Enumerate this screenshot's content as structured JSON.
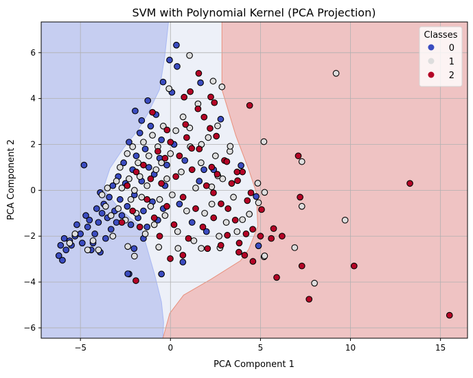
{
  "chart_data": {
    "type": "scatter",
    "title": "SVM with Polynomial Kernel (PCA Projection)",
    "xlabel": "PCA Component 1",
    "ylabel": "PCA Component 2",
    "xlim": [
      -7.18,
      16.5
    ],
    "ylim": [
      -6.45,
      7.34
    ],
    "xticks": [
      -5,
      0,
      5,
      10,
      15
    ],
    "yticks": [
      -6,
      -4,
      -2,
      0,
      2,
      4,
      6
    ],
    "xtick_labels": [
      "−5",
      "0",
      "5",
      "10",
      "15"
    ],
    "ytick_labels": [
      "−6",
      "−4",
      "−2",
      "0",
      "2",
      "4",
      "6"
    ],
    "grid": true,
    "legend": {
      "title": "Classes",
      "placement": "top-right",
      "entries": [
        {
          "label": "0",
          "color": "#3b4cc0"
        },
        {
          "label": "1",
          "color": "#dddddd"
        },
        {
          "label": "2",
          "color": "#b40426"
        }
      ]
    },
    "class_colors": [
      "#3b4cc0",
      "#dddddd",
      "#b40426"
    ],
    "region_colors": [
      "#c6cef1",
      "#edf0f8",
      "#efc3c3"
    ],
    "decision_boundaries": {
      "class0_class1": [
        [
          -0.11,
          7.34
        ],
        [
          -0.31,
          5.88
        ],
        [
          -0.61,
          4.39
        ],
        [
          -1.26,
          3.34
        ],
        [
          -1.83,
          2.6
        ],
        [
          -2.6,
          1.85
        ],
        [
          -3.36,
          0.96
        ],
        [
          -3.74,
          0.06
        ],
        [
          -2.79,
          -0.84
        ],
        [
          -1.64,
          -1.58
        ],
        [
          -1.26,
          -2.63
        ],
        [
          -0.88,
          -3.67
        ],
        [
          -0.5,
          -4.87
        ],
        [
          -0.38,
          -5.76
        ],
        [
          -0.42,
          -6.45
        ]
      ],
      "class1_class2": [
        [
          2.86,
          7.34
        ],
        [
          2.86,
          4.39
        ],
        [
          3.63,
          2.39
        ],
        [
          4.35,
          0.9
        ],
        [
          4.77,
          -0.09
        ],
        [
          4.85,
          -1.58
        ],
        [
          4.35,
          -2.57
        ],
        [
          3.89,
          -3.07
        ],
        [
          2.25,
          -3.88
        ],
        [
          0.73,
          -4.57
        ],
        [
          -0.04,
          -5.37
        ],
        [
          -0.42,
          -6.45
        ]
      ]
    },
    "points": [
      [
        -6.2,
        -2.85,
        0
      ],
      [
        -6.0,
        -3.05,
        0
      ],
      [
        -6.1,
        -2.4,
        0
      ],
      [
        -5.9,
        -2.1,
        0
      ],
      [
        -5.8,
        -2.6,
        0
      ],
      [
        -5.6,
        -2.2,
        0
      ],
      [
        -5.5,
        -2.4,
        0
      ],
      [
        -5.3,
        -2.0,
        0
      ],
      [
        -5.2,
        -1.5,
        0
      ],
      [
        -5.0,
        -1.9,
        0
      ],
      [
        -4.9,
        -2.3,
        0
      ],
      [
        -4.7,
        -1.1,
        0
      ],
      [
        -4.6,
        -1.6,
        0
      ],
      [
        -4.5,
        -1.3,
        0
      ],
      [
        -4.3,
        -2.3,
        0
      ],
      [
        -4.2,
        -1.9,
        0
      ],
      [
        -4.1,
        -0.8,
        0
      ],
      [
        -4.0,
        -1.4,
        0
      ],
      [
        -3.9,
        -0.1,
        0
      ],
      [
        -3.8,
        -1.0,
        0
      ],
      [
        -3.7,
        -0.6,
        0
      ],
      [
        -3.6,
        -2.1,
        0
      ],
      [
        -3.5,
        -1.2,
        0
      ],
      [
        -3.4,
        -0.3,
        0
      ],
      [
        -3.3,
        -1.7,
        0
      ],
      [
        -3.2,
        0.2,
        0
      ],
      [
        -3.1,
        -0.9,
        0
      ],
      [
        -3.0,
        -1.4,
        0
      ],
      [
        -2.9,
        0.6,
        0
      ],
      [
        -2.8,
        -0.4,
        0
      ],
      [
        -2.7,
        -1.1,
        0
      ],
      [
        -2.6,
        1.2,
        0
      ],
      [
        -2.5,
        0.3,
        0
      ],
      [
        -2.4,
        -0.7,
        0
      ],
      [
        -2.3,
        2.1,
        0
      ],
      [
        -2.2,
        -1.5,
        0
      ],
      [
        -2.1,
        0.9,
        0
      ],
      [
        -2.0,
        -0.2,
        0
      ],
      [
        -1.9,
        1.5,
        0
      ],
      [
        -1.8,
        -1.2,
        0
      ],
      [
        -1.7,
        2.5,
        0
      ],
      [
        -1.6,
        0.4,
        0
      ],
      [
        -1.5,
        -0.9,
        0
      ],
      [
        -1.4,
        1.8,
        0
      ],
      [
        -1.3,
        -1.6,
        0
      ],
      [
        -1.2,
        1.0,
        0
      ],
      [
        -1.1,
        2.8,
        0
      ],
      [
        -1.0,
        -0.5,
        0
      ],
      [
        -0.9,
        0.7,
        0
      ],
      [
        -0.8,
        3.3,
        0
      ],
      [
        -0.7,
        -1.3,
        0
      ],
      [
        -0.6,
        1.4,
        0
      ],
      [
        -0.5,
        2.2,
        0
      ],
      [
        -0.4,
        -0.8,
        0
      ],
      [
        -0.3,
        0.2,
        0
      ],
      [
        -0.2,
        1.1,
        0
      ],
      [
        0.2,
        2.0,
        0
      ],
      [
        0.5,
        -0.6,
        0
      ],
      [
        0.8,
        1.3,
        0
      ],
      [
        1.2,
        -1.4,
        0
      ],
      [
        1.6,
        0.4,
        0
      ],
      [
        2.0,
        -1.8,
        0
      ],
      [
        2.4,
        0.9,
        0
      ],
      [
        -4.8,
        1.1,
        0
      ],
      [
        -2.3,
        -3.65,
        0
      ],
      [
        -0.5,
        -3.65,
        0
      ],
      [
        -4.4,
        -2.6,
        0
      ],
      [
        -3.9,
        -2.7,
        0
      ],
      [
        -1.5,
        -2.1,
        0
      ],
      [
        0.33,
        6.33,
        0
      ],
      [
        -0.05,
        5.68,
        0
      ],
      [
        0.37,
        5.4,
        0
      ],
      [
        1.67,
        4.69,
        0
      ],
      [
        -0.41,
        4.72,
        0
      ],
      [
        0.08,
        4.27,
        0
      ],
      [
        -1.26,
        3.91,
        0
      ],
      [
        -1.96,
        3.46,
        0
      ],
      [
        2.79,
        3.1,
        0
      ],
      [
        -1.6,
        3.04,
        0
      ],
      [
        3.92,
        1.08,
        0
      ],
      [
        1.86,
        0.9,
        0
      ],
      [
        4.76,
        -0.27,
        0
      ],
      [
        4.89,
        -2.42,
        0
      ],
      [
        0.69,
        -3.13,
        0
      ],
      [
        -2.37,
        -3.64,
        0
      ],
      [
        -2.02,
        -2.54,
        0
      ],
      [
        -5.6,
        -2.3,
        1
      ],
      [
        -5.3,
        -1.9,
        1
      ],
      [
        -4.6,
        -2.6,
        1
      ],
      [
        -4.3,
        -2.2,
        1
      ],
      [
        -4.0,
        -2.6,
        1
      ],
      [
        -3.8,
        -0.2,
        1
      ],
      [
        -3.6,
        -0.7,
        1
      ],
      [
        -3.5,
        0.1,
        1
      ],
      [
        -3.3,
        -1.1,
        1
      ],
      [
        -3.2,
        -2.0,
        1
      ],
      [
        -3.0,
        0.4,
        1
      ],
      [
        -2.9,
        -0.8,
        1
      ],
      [
        -2.8,
        1.0,
        1
      ],
      [
        -2.7,
        0.1,
        1
      ],
      [
        -2.5,
        -1.3,
        1
      ],
      [
        -2.4,
        1.6,
        1
      ],
      [
        -2.3,
        0.5,
        1
      ],
      [
        -2.2,
        -0.4,
        1
      ],
      [
        -2.1,
        1.9,
        1
      ],
      [
        -2.0,
        0.0,
        1
      ],
      [
        -1.9,
        -1.0,
        1
      ],
      [
        -1.8,
        1.2,
        1
      ],
      [
        -1.7,
        0.6,
        1
      ],
      [
        -1.6,
        -0.3,
        1
      ],
      [
        -1.5,
        2.1,
        1
      ],
      [
        -1.4,
        -1.9,
        1
      ],
      [
        -1.3,
        0.2,
        1
      ],
      [
        -1.2,
        1.5,
        1
      ],
      [
        -1.1,
        -0.7,
        1
      ],
      [
        -1.0,
        2.4,
        1
      ],
      [
        -0.9,
        -1.5,
        1
      ],
      [
        -0.8,
        0.9,
        1
      ],
      [
        -0.7,
        1.9,
        1
      ],
      [
        -0.6,
        -0.4,
        1
      ],
      [
        -0.5,
        1.2,
        1
      ],
      [
        -0.4,
        2.8,
        1
      ],
      [
        -0.3,
        -1.1,
        1
      ],
      [
        -0.2,
        0.5,
        1
      ],
      [
        0.0,
        1.6,
        1
      ],
      [
        0.1,
        -0.2,
        1
      ],
      [
        0.3,
        2.6,
        1
      ],
      [
        0.4,
        -1.8,
        1
      ],
      [
        0.6,
        0.8,
        1
      ],
      [
        0.7,
        3.2,
        1
      ],
      [
        0.9,
        -0.9,
        1
      ],
      [
        1.1,
        1.9,
        1
      ],
      [
        1.3,
        -2.2,
        1
      ],
      [
        1.4,
        0.1,
        1
      ],
      [
        1.7,
        1.2,
        1
      ],
      [
        1.9,
        -1.0,
        1
      ],
      [
        2.1,
        2.3,
        1
      ],
      [
        2.3,
        -0.6,
        1
      ],
      [
        2.5,
        1.5,
        1
      ],
      [
        2.7,
        -2.0,
        1
      ],
      [
        2.9,
        0.5,
        1
      ],
      [
        3.1,
        -1.4,
        1
      ],
      [
        3.3,
        1.7,
        1
      ],
      [
        3.5,
        -0.3,
        1
      ],
      [
        3.7,
        -1.8,
        1
      ],
      [
        9.2,
        5.1,
        1
      ],
      [
        9.7,
        -1.3,
        1
      ],
      [
        8.0,
        -4.05,
        1
      ],
      [
        7.3,
        1.25,
        1
      ],
      [
        7.3,
        -0.7,
        1
      ],
      [
        6.9,
        -2.5,
        1
      ],
      [
        5.2,
        -2.9,
        1
      ],
      [
        1.06,
        5.88,
        1
      ],
      [
        2.37,
        4.76,
        1
      ],
      [
        2.86,
        4.51,
        1
      ],
      [
        -0.08,
        4.43,
        1
      ],
      [
        1.53,
        3.77,
        1
      ],
      [
        1.07,
        2.72,
        1
      ],
      [
        2.62,
        2.81,
        1
      ],
      [
        5.19,
        2.12,
        1
      ],
      [
        1.72,
        2.0,
        1
      ],
      [
        3.32,
        1.92,
        1
      ],
      [
        2.63,
        0.63,
        1
      ],
      [
        2.29,
        0.15,
        1
      ],
      [
        4.85,
        0.31,
        1
      ],
      [
        5.23,
        -0.09,
        1
      ],
      [
        4.89,
        -0.54,
        1
      ],
      [
        4.38,
        -1.04,
        1
      ],
      [
        4.0,
        -1.28,
        1
      ],
      [
        5.23,
        -2.86,
        1
      ],
      [
        2.75,
        -2.51,
        1
      ],
      [
        1.71,
        -2.53,
        1
      ],
      [
        0.42,
        -2.53,
        1
      ],
      [
        -0.65,
        -2.48,
        1
      ],
      [
        -2.37,
        -2.45,
        1
      ],
      [
        -2.0,
        -2.87,
        1
      ],
      [
        -2.7,
        -1.4,
        2
      ],
      [
        -2.4,
        0.2,
        2
      ],
      [
        -2.1,
        -0.9,
        2
      ],
      [
        -1.9,
        0.8,
        2
      ],
      [
        -1.7,
        -1.6,
        2
      ],
      [
        -1.5,
        1.1,
        2
      ],
      [
        -1.3,
        -0.4,
        2
      ],
      [
        -1.1,
        0.5,
        2
      ],
      [
        -1.0,
        3.4,
        2
      ],
      [
        -0.9,
        -1.2,
        2
      ],
      [
        -0.7,
        1.7,
        2
      ],
      [
        -0.6,
        -2.0,
        2
      ],
      [
        -0.5,
        0.3,
        2
      ],
      [
        -0.3,
        1.4,
        2
      ],
      [
        -0.2,
        -0.7,
        2
      ],
      [
        0.0,
        2.1,
        2
      ],
      [
        0.2,
        -1.5,
        2
      ],
      [
        0.3,
        0.6,
        2
      ],
      [
        0.5,
        1.5,
        2
      ],
      [
        0.7,
        -0.3,
        2
      ],
      [
        0.9,
        2.3,
        2
      ],
      [
        1.0,
        -2.1,
        2
      ],
      [
        1.2,
        0.9,
        2
      ],
      [
        1.4,
        -0.8,
        2
      ],
      [
        1.6,
        1.8,
        2
      ],
      [
        1.8,
        -1.6,
        2
      ],
      [
        2.0,
        0.2,
        2
      ],
      [
        2.2,
        2.7,
        2
      ],
      [
        2.4,
        -1.2,
        2
      ],
      [
        2.6,
        0.7,
        2
      ],
      [
        2.8,
        -2.4,
        2
      ],
      [
        3.0,
        1.3,
        2
      ],
      [
        3.2,
        -0.8,
        2
      ],
      [
        3.4,
        0.3,
        2
      ],
      [
        3.6,
        -1.3,
        2
      ],
      [
        3.8,
        -2.7,
        2
      ],
      [
        4.0,
        0.8,
        2
      ],
      [
        4.2,
        -1.9,
        2
      ],
      [
        15.5,
        -5.45,
        2
      ],
      [
        13.3,
        0.3,
        2
      ],
      [
        10.2,
        -3.3,
        2
      ],
      [
        7.7,
        -4.75,
        2
      ],
      [
        7.3,
        -3.3,
        2
      ],
      [
        7.1,
        1.5,
        2
      ],
      [
        7.2,
        -0.3,
        2
      ],
      [
        6.2,
        -2.0,
        2
      ],
      [
        5.9,
        -3.8,
        2
      ],
      [
        5.6,
        -2.1,
        2
      ],
      [
        4.4,
        3.7,
        2
      ],
      [
        1.57,
        5.1,
        2
      ],
      [
        1.1,
        4.3,
        2
      ],
      [
        0.76,
        4.06,
        2
      ],
      [
        2.24,
        4.07,
        2
      ],
      [
        2.44,
        3.82,
        2
      ],
      [
        1.53,
        3.55,
        2
      ],
      [
        1.87,
        3.19,
        2
      ],
      [
        -0.19,
        2.63,
        2
      ],
      [
        0.84,
        2.87,
        2
      ],
      [
        2.55,
        2.36,
        2
      ],
      [
        1.18,
        1.83,
        2
      ],
      [
        2.29,
        1.01,
        2
      ],
      [
        3.13,
        1.25,
        2
      ],
      [
        3.7,
        0.8,
        2
      ],
      [
        3.73,
        0.42,
        2
      ],
      [
        2.39,
        -0.11,
        2
      ],
      [
        4.47,
        -0.11,
        2
      ],
      [
        5.06,
        -0.84,
        2
      ],
      [
        4.27,
        -0.45,
        2
      ],
      [
        2.81,
        -0.59,
        2
      ],
      [
        4.57,
        -1.7,
        2
      ],
      [
        5.73,
        -1.67,
        2
      ],
      [
        5.0,
        -2.0,
        2
      ],
      [
        4.58,
        -3.1,
        2
      ],
      [
        4.12,
        -2.83,
        2
      ],
      [
        3.82,
        -2.3,
        2
      ],
      [
        3.16,
        -1.96,
        2
      ],
      [
        2.06,
        -2.54,
        2
      ],
      [
        0.69,
        -2.83,
        2
      ],
      [
        -0.01,
        -2.98,
        2
      ],
      [
        -1.92,
        -3.94,
        2
      ]
    ]
  }
}
